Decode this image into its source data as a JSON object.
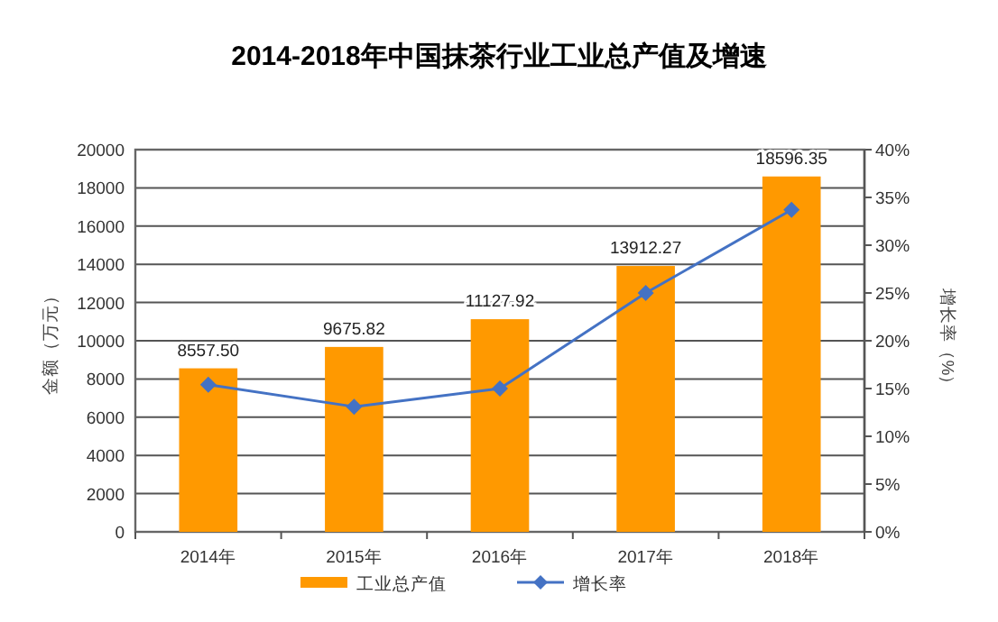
{
  "chart_data": {
    "type": "bar",
    "title": "2014-2018年中国抹茶行业工业总产值及增速",
    "categories": [
      "2014年",
      "2015年",
      "2016年",
      "2017年",
      "2018年"
    ],
    "ylabel": "金额（万元）",
    "y2label": "增长率（%）",
    "ylim": [
      0,
      20000
    ],
    "yticks": [
      0,
      2000,
      4000,
      6000,
      8000,
      10000,
      12000,
      14000,
      16000,
      18000,
      20000
    ],
    "y2lim": [
      0,
      40
    ],
    "y2ticks": [
      {
        "value": 0,
        "label": "0%"
      },
      {
        "value": 5,
        "label": "5%"
      },
      {
        "value": 10,
        "label": "10%"
      },
      {
        "value": 15,
        "label": "15%"
      },
      {
        "value": 20,
        "label": "20%"
      },
      {
        "value": 25,
        "label": "25%"
      },
      {
        "value": 30,
        "label": "30%"
      },
      {
        "value": 35,
        "label": "35%"
      },
      {
        "value": 40,
        "label": "40%"
      }
    ],
    "grid": "y",
    "legend": "bottom",
    "marker": "diamond",
    "series": [
      {
        "name": "工业总产值",
        "color": "#ff9900",
        "values": [
          8557.5,
          9675.82,
          11127.92,
          13912.27,
          18596.35
        ],
        "value_labels": [
          "8557.50",
          "9675.82",
          "11127.92",
          "13912.27",
          "18596.35"
        ]
      },
      {
        "name": "增长率",
        "type": "line",
        "axis": "y2",
        "color": "#4472c4",
        "values": [
          15.4,
          13.1,
          15.0,
          25.0,
          33.7
        ]
      }
    ]
  }
}
